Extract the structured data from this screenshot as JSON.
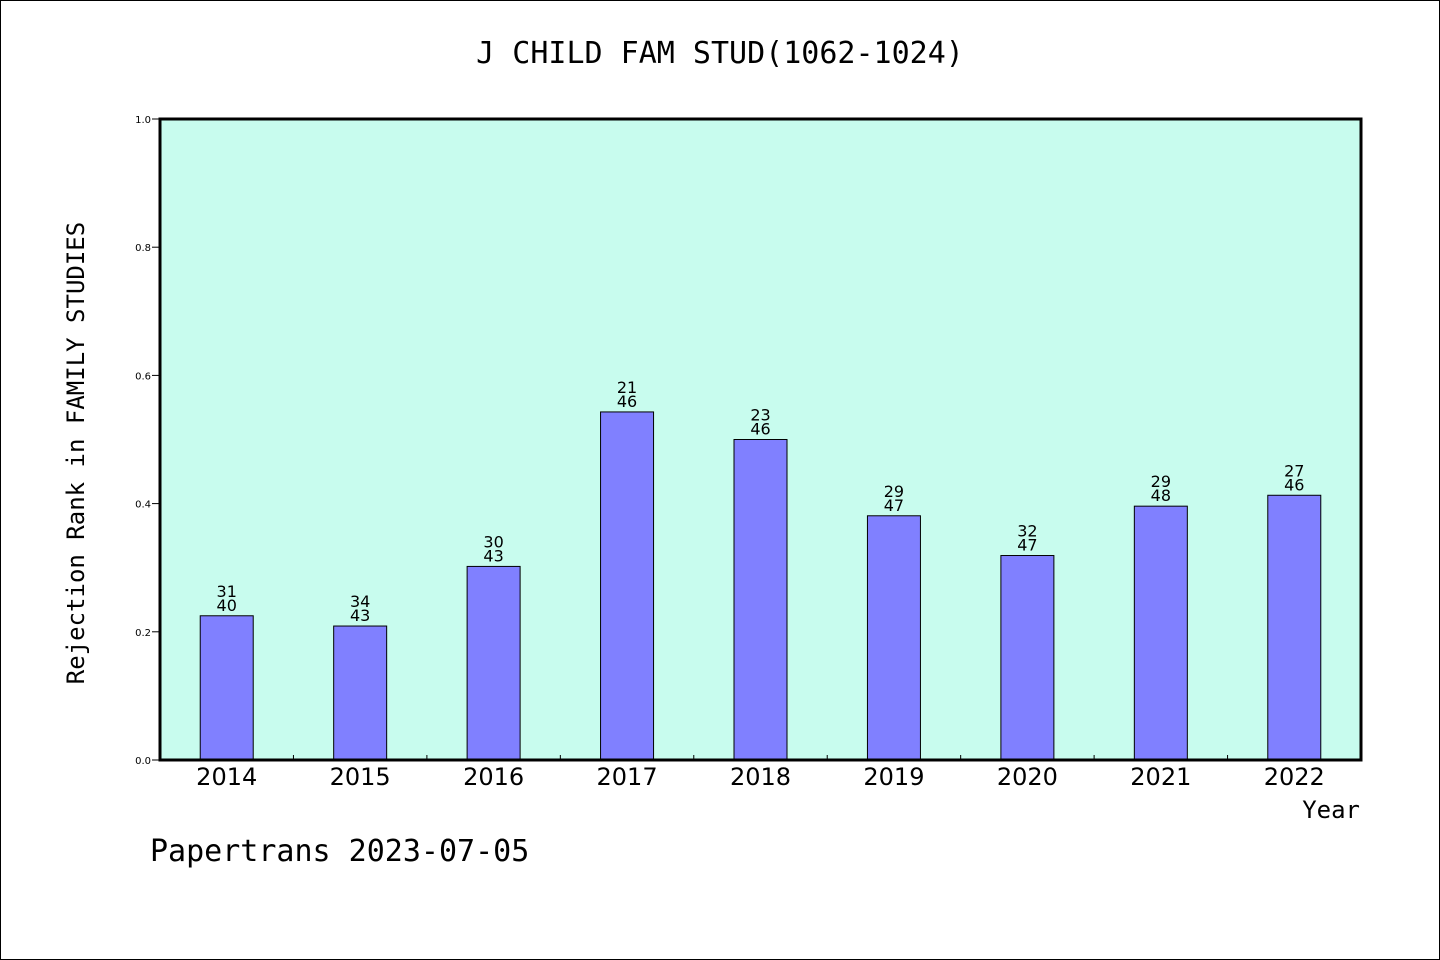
{
  "title": "J CHILD FAM STUD(1062-1024)",
  "footer": "Papertrans 2023-07-05",
  "colors": {
    "plot_bg": "#c8fcee",
    "bar_fill": "#8080ff",
    "bar_stroke": "#000000",
    "axis": "#000000"
  },
  "chart_data": {
    "type": "bar",
    "title": "J CHILD FAM STUD(1062-1024)",
    "xlabel": "Year",
    "ylabel": "Rejection Rank in FAMILY STUDIES",
    "ylim": [
      0,
      1.0
    ],
    "yticks": [
      "0.0",
      "0.2",
      "0.4",
      "0.6",
      "0.8",
      "1.0"
    ],
    "yticks_values": [
      0,
      0.2,
      0.4,
      0.6,
      0.8,
      1.0
    ],
    "grid": false,
    "categories": [
      "2014",
      "2015",
      "2016",
      "2017",
      "2018",
      "2019",
      "2020",
      "2021",
      "2022"
    ],
    "values": [
      0.225,
      0.209,
      0.302,
      0.543,
      0.5,
      0.381,
      0.319,
      0.396,
      0.413
    ],
    "labels_top": [
      "31",
      "34",
      "30",
      "21",
      "23",
      "29",
      "32",
      "29",
      "27"
    ],
    "labels_bottom": [
      "40",
      "43",
      "43",
      "46",
      "46",
      "47",
      "47",
      "48",
      "46"
    ]
  }
}
